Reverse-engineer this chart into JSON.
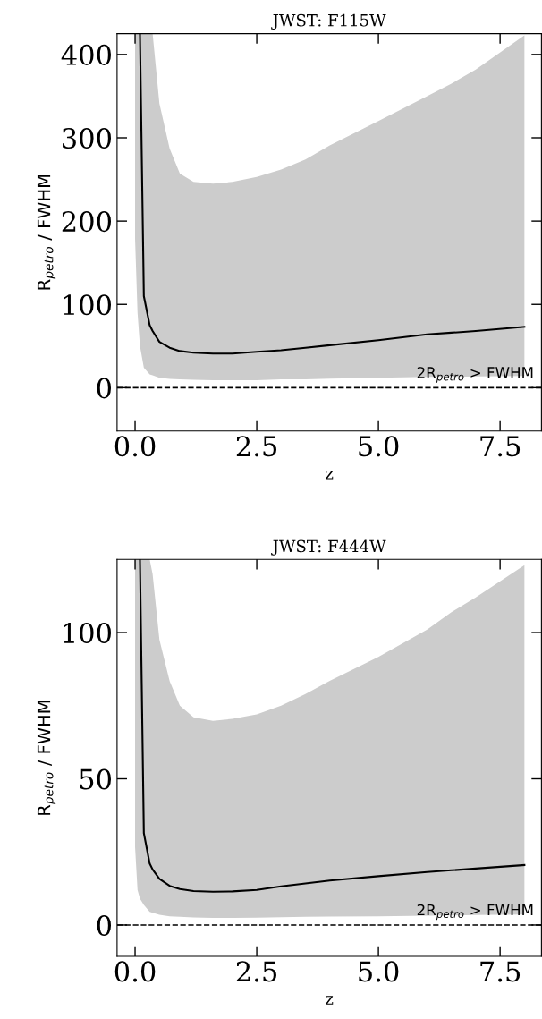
{
  "chart_data": [
    {
      "type": "line",
      "title": "JWST: F115W",
      "xlabel": "z",
      "ylabel": "R$_{petro}$ / FWHM",
      "x": [
        0,
        0.05,
        0.1,
        0.18,
        0.3,
        0.36,
        0.5,
        0.71,
        0.92,
        1.2,
        1.6,
        2.0,
        2.5,
        3,
        3.5,
        4,
        5,
        6,
        6.5,
        7,
        8
      ],
      "series": [
        {
          "color": "#000000",
          "values": [
            null,
            null,
            425,
            110,
            75,
            68,
            55,
            48,
            44,
            42,
            41,
            41,
            43,
            45,
            48,
            51,
            57,
            64,
            66,
            68,
            73
          ],
          "lower": [
            178,
            90,
            50,
            24,
            16,
            15,
            12,
            10.5,
            10,
            9.5,
            9,
            9,
            9,
            10,
            10,
            11,
            12,
            13,
            13,
            13.5,
            14
          ],
          "upper": [
            425,
            425,
            425,
            425,
            425,
            425,
            341,
            287,
            257,
            247,
            245,
            247,
            253,
            262,
            274,
            291,
            320,
            350,
            365,
            382,
            423
          ]
        }
      ],
      "xlim": [
        -0.37,
        8.35
      ],
      "ylim": [
        -52,
        425
      ],
      "xticks": [
        {
          "value": 0,
          "label": "0.0"
        },
        {
          "value": 2.5,
          "label": "2.5"
        },
        {
          "value": 5,
          "label": "5.0"
        },
        {
          "value": 7.5,
          "label": "7.5"
        }
      ],
      "yticks": [
        0,
        100,
        200,
        300,
        400
      ],
      "ref_lines": [
        {
          "axis": "y",
          "value": 0,
          "label": "2R$_{petro}$ > FWHM",
          "color": "#000000",
          "line_style": "dashed"
        }
      ],
      "grid": false,
      "legend": false
    },
    {
      "type": "line",
      "title": "JWST: F444W",
      "xlabel": "z",
      "ylabel": "R$_{petro}$ / FWHM",
      "x": [
        0,
        0.05,
        0.1,
        0.18,
        0.3,
        0.36,
        0.5,
        0.71,
        0.92,
        1.2,
        1.6,
        2.0,
        2.5,
        3,
        3.5,
        4,
        5,
        6,
        6.5,
        7,
        8
      ],
      "series": [
        {
          "color": "#000000",
          "values": [
            null,
            null,
            125,
            31.4,
            21,
            19,
            15.8,
            13.4,
            12.3,
            11.6,
            11.4,
            11.5,
            12,
            13.2,
            14.2,
            15.2,
            16.7,
            18.1,
            18.7,
            19.3,
            20.5
          ],
          "lower": [
            26.5,
            12,
            9,
            6.9,
            4.5,
            4.2,
            3.5,
            3,
            2.8,
            2.6,
            2.4,
            2.4,
            2.5,
            2.7,
            2.8,
            2.9,
            3,
            3.2,
            3.3,
            3.4,
            3.6
          ],
          "upper": [
            125,
            125,
            125,
            125,
            125,
            120,
            97.6,
            83.4,
            75,
            71,
            69.8,
            70.5,
            72,
            75,
            79,
            83.5,
            91.7,
            101,
            107,
            112,
            123
          ]
        }
      ],
      "xlim": [
        -0.37,
        8.35
      ],
      "ylim": [
        -10.7,
        125
      ],
      "xticks": [
        {
          "value": 0,
          "label": "0.0"
        },
        {
          "value": 2.5,
          "label": "2.5"
        },
        {
          "value": 5,
          "label": "5.0"
        },
        {
          "value": 7.5,
          "label": "7.5"
        }
      ],
      "yticks": [
        0,
        50,
        100
      ],
      "ref_lines": [
        {
          "axis": "y",
          "value": 0,
          "label": "2R$_{petro}$ > FWHM",
          "color": "#000000",
          "line_style": "dashed"
        }
      ],
      "grid": false,
      "legend": false
    }
  ]
}
